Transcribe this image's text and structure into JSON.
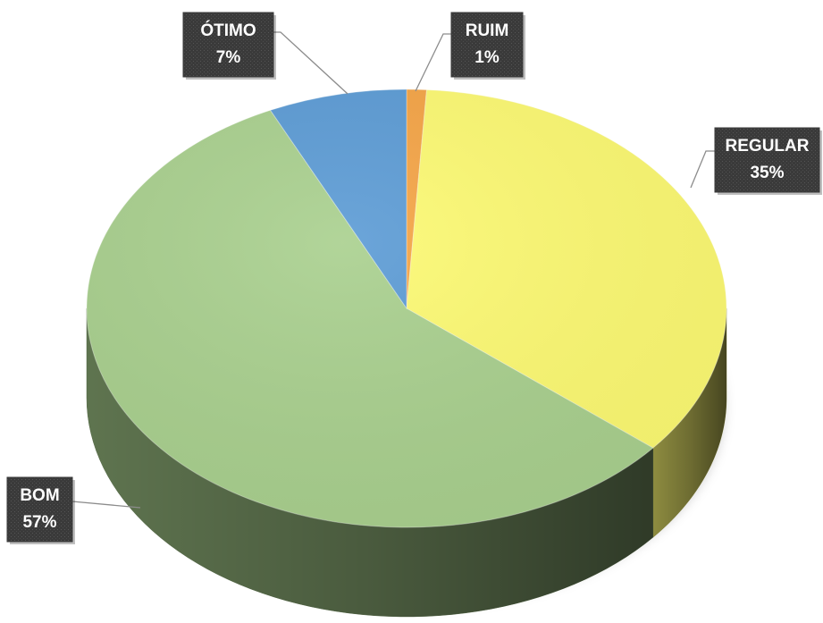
{
  "chart_data": {
    "type": "pie",
    "style": "3d",
    "slices": [
      {
        "label": "RUIM",
        "value": 1,
        "value_text": "1%",
        "color": "#F5A445"
      },
      {
        "label": "REGULAR",
        "value": 35,
        "value_text": "35%",
        "color": "#FDFA72"
      },
      {
        "label": "BOM",
        "value": 57,
        "value_text": "57%",
        "color": "#A9D08E"
      },
      {
        "label": "ÓTIMO",
        "value": 7,
        "value_text": "7%",
        "color": "#5B9BD5"
      }
    ],
    "label_box_color": "#3A3A3A"
  }
}
